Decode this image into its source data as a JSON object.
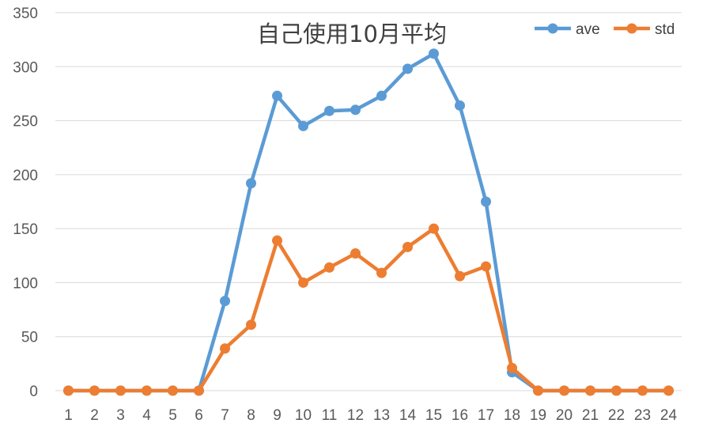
{
  "chart_data": {
    "type": "line",
    "title": "自己使用10月平均",
    "xlabel": "",
    "ylabel": "",
    "ylim": [
      0,
      350
    ],
    "yticks": [
      0,
      50,
      100,
      150,
      200,
      250,
      300,
      350
    ],
    "grid": true,
    "legend_position": "top-right",
    "categories": [
      "1",
      "2",
      "3",
      "4",
      "5",
      "6",
      "7",
      "8",
      "9",
      "10",
      "11",
      "12",
      "13",
      "14",
      "15",
      "16",
      "17",
      "18",
      "19",
      "20",
      "21",
      "22",
      "23",
      "24"
    ],
    "series": [
      {
        "name": "ave",
        "color": "#5b9bd5",
        "values": [
          0,
          0,
          0,
          0,
          0,
          0,
          83,
          192,
          273,
          245,
          259,
          260,
          273,
          298,
          312,
          264,
          175,
          17,
          0,
          0,
          0,
          0,
          0,
          0
        ]
      },
      {
        "name": "std",
        "color": "#ed7d31",
        "values": [
          0,
          0,
          0,
          0,
          0,
          0,
          39,
          61,
          139,
          100,
          114,
          127,
          109,
          133,
          150,
          106,
          115,
          21,
          0,
          0,
          0,
          0,
          0,
          0
        ]
      }
    ]
  }
}
